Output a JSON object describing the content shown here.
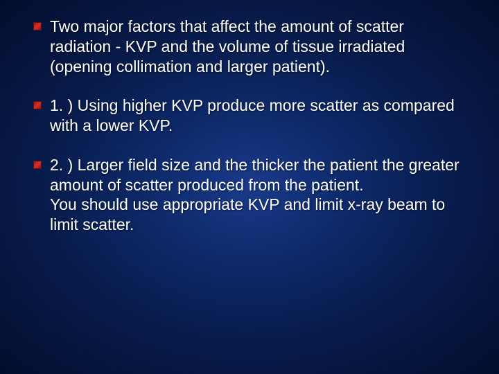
{
  "slide": {
    "background_gradient": {
      "type": "radial",
      "stops": [
        "#1a3a8a",
        "#0d2968",
        "#081b4a",
        "#030d2e"
      ]
    },
    "bullets": [
      {
        "text": "Two major factors that affect the amount of scatter radiation - KVP and the volume of tissue irradiated (opening collimation and larger patient).",
        "marker_color": "#a01818"
      },
      {
        "text": "1. ) Using higher KVP produce more scatter as compared with a lower KVP.",
        "marker_color": "#a01818"
      },
      {
        "text": "2. ) Larger field size and the thicker the patient the greater amount of scatter produced from the patient.\nYou should use appropriate KVP and limit x-ray beam to limit scatter.",
        "marker_color": "#a01818"
      }
    ],
    "text_color": "#ffffff",
    "font_size_pt": 23,
    "font_family": "Arial"
  }
}
